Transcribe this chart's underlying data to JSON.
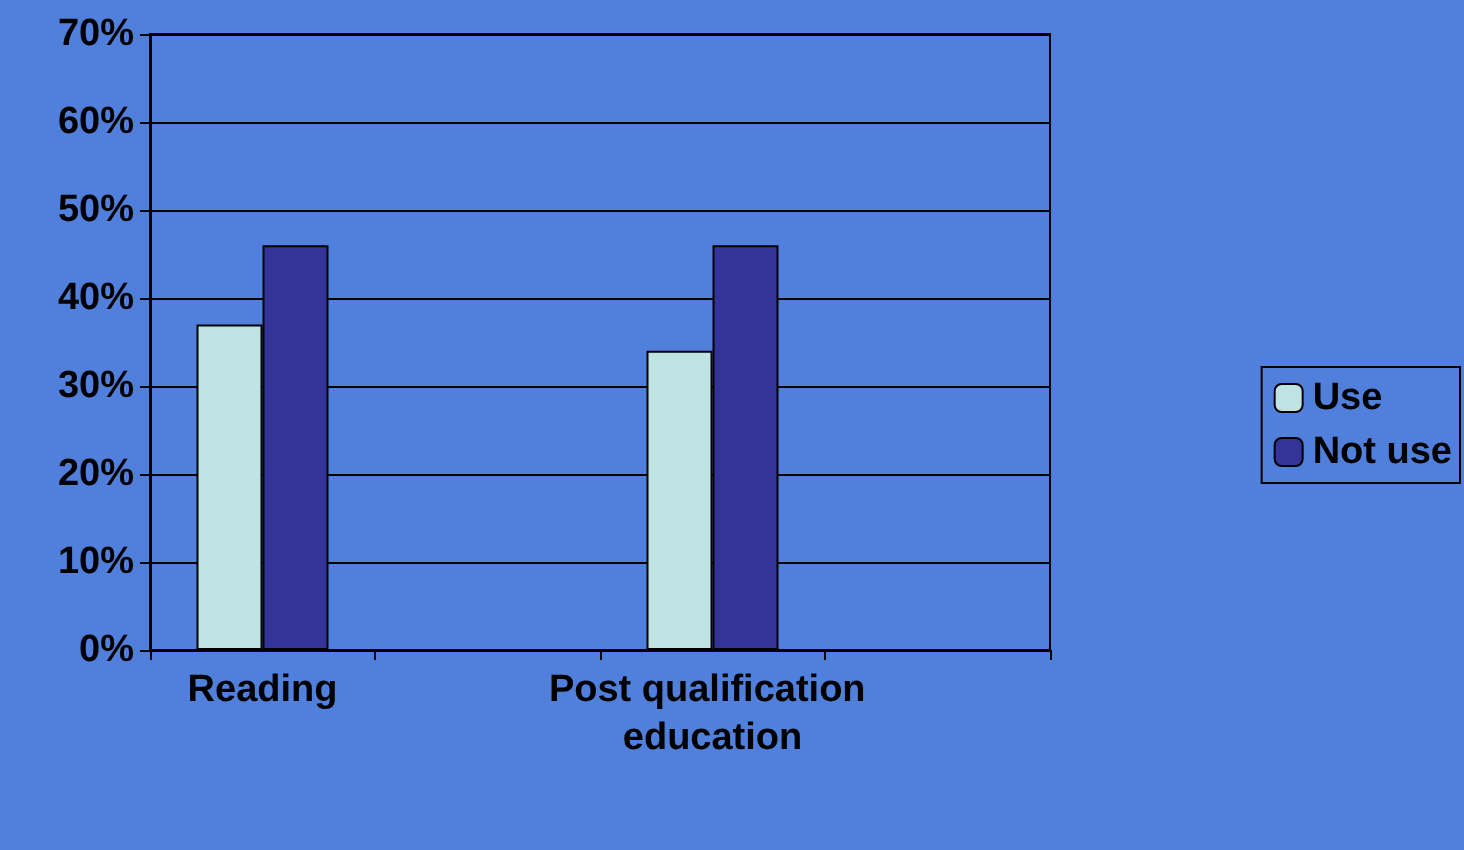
{
  "chart_data": {
    "type": "bar",
    "categories": [
      "Reading",
      null,
      "Post qualification education",
      null
    ],
    "series": [
      {
        "name": "Use",
        "color": "#bfe3e3",
        "values": [
          37,
          null,
          34,
          null
        ]
      },
      {
        "name": "Not use",
        "color": "#333399",
        "values": [
          46,
          null,
          46,
          null
        ]
      }
    ],
    "ylim": [
      0,
      70
    ],
    "yticks": [
      {
        "value": 0,
        "label": "0%"
      },
      {
        "value": 10,
        "label": "10%"
      },
      {
        "value": 20,
        "label": "20%"
      },
      {
        "value": 30,
        "label": "30%"
      },
      {
        "value": 40,
        "label": "40%"
      },
      {
        "value": 50,
        "label": "50%"
      },
      {
        "value": 60,
        "label": "60%"
      },
      {
        "value": 70,
        "label": "70%"
      }
    ],
    "grid": "y",
    "legend": "right"
  }
}
